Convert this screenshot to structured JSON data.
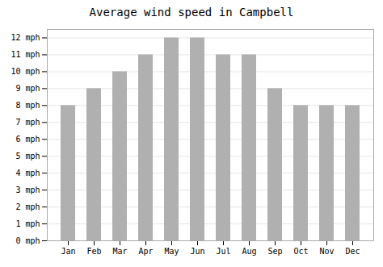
{
  "chart_data": {
    "type": "bar",
    "title": "Average wind speed in Campbell",
    "categories": [
      "Jan",
      "Feb",
      "Mar",
      "Apr",
      "May",
      "Jun",
      "Jul",
      "Aug",
      "Sep",
      "Oct",
      "Nov",
      "Dec"
    ],
    "values": [
      8,
      9,
      10,
      11,
      12,
      12,
      11,
      11,
      9,
      8,
      8,
      8
    ],
    "color": "#b0b0b0",
    "ylim": [
      0,
      12.5
    ],
    "yticks": [
      {
        "value": 0,
        "label": "0 mph"
      },
      {
        "value": 1,
        "label": "1 mph"
      },
      {
        "value": 2,
        "label": "2 mph"
      },
      {
        "value": 3,
        "label": "3 mph"
      },
      {
        "value": 4,
        "label": "4 mph"
      },
      {
        "value": 5,
        "label": "5 mph"
      },
      {
        "value": 6,
        "label": "6 mph"
      },
      {
        "value": 7,
        "label": "7 mph"
      },
      {
        "value": 8,
        "label": "8 mph"
      },
      {
        "value": 9,
        "label": "9 mph"
      },
      {
        "value": 10,
        "label": "10 mph"
      },
      {
        "value": 11,
        "label": "11 mph"
      },
      {
        "value": 12,
        "label": "12 mph"
      }
    ],
    "grid": true
  }
}
